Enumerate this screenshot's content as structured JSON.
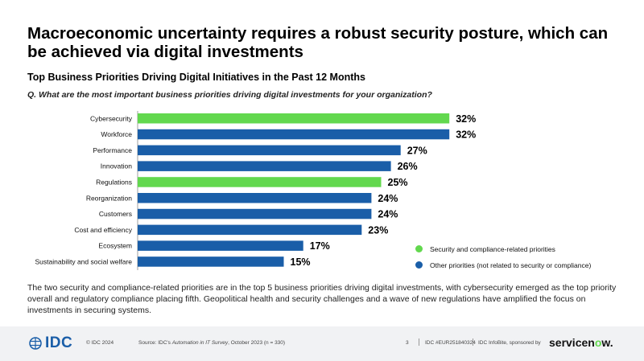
{
  "headline": "Macroeconomic uncertainty requires a robust security posture, which can be achieved via digital investments",
  "subtitle": "Top Business Priorities Driving Digital Initiatives in the Past 12 Months",
  "question": "Q. What are the most important business priorities driving digital investments for your organization?",
  "colors": {
    "security": "#62d84e",
    "other": "#1a5ea8"
  },
  "chart_data": {
    "type": "bar",
    "orientation": "horizontal",
    "categories": [
      "Cybersecurity",
      "Workforce",
      "Performance",
      "Innovation",
      "Regulations",
      "Reorganization",
      "Customers",
      "Cost and efficiency",
      "Ecosystem",
      "Sustainability and social welfare"
    ],
    "values": [
      32,
      32,
      27,
      26,
      25,
      24,
      24,
      23,
      17,
      15
    ],
    "value_labels": [
      "32%",
      "32%",
      "27%",
      "26%",
      "25%",
      "24%",
      "24%",
      "23%",
      "17%",
      "15%"
    ],
    "groups": [
      "security",
      "other",
      "other",
      "other",
      "security",
      "other",
      "other",
      "other",
      "other",
      "other"
    ],
    "unit": "%",
    "legend": [
      {
        "key": "security",
        "label": "Security and compliance-related priorities"
      },
      {
        "key": "other",
        "label": "Other priorities (not related to security or compliance)"
      }
    ],
    "legend_position": "bottom-right",
    "grid": false
  },
  "body": "The two security and compliance-related priorities are in the top 5 business priorities driving digital investments, with cybersecurity emerged as the top priority overall and regulatory compliance placing fifth. Geopolitical health and security challenges and a wave of new regulations have amplified the focus on investments in securing systems.",
  "footer": {
    "logo_text": "IDC",
    "copyright": "© IDC 2024",
    "source_prefix": "Source: IDC's ",
    "source_title": "Automation in IT Survey",
    "source_suffix": ", October 2023 (n = 330)",
    "page_number": "3",
    "doc_id": "IDC #EUR251840324",
    "infobite": "IDC InfoBite, sponsored by",
    "sponsor_logo_a": "servicen",
    "sponsor_logo_b": "o",
    "sponsor_logo_c": "w",
    "sponsor_logo_d": "."
  }
}
